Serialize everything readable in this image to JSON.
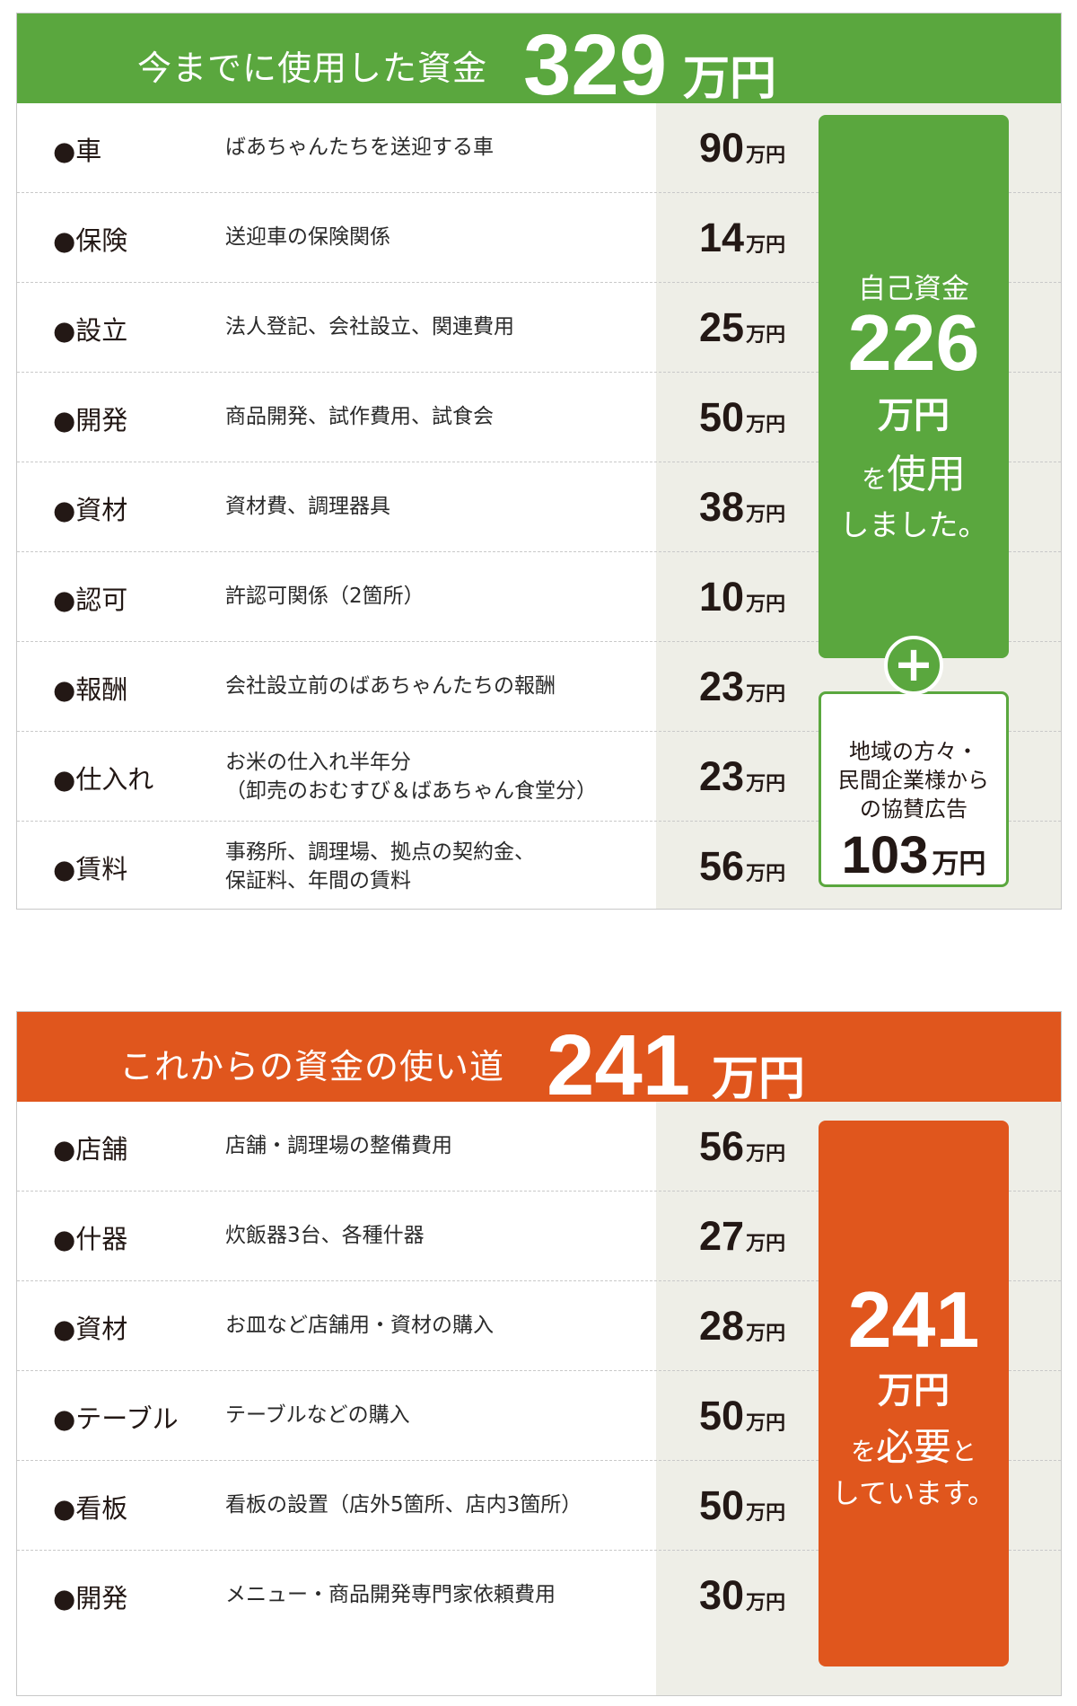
{
  "used": {
    "header_label": "今までに使用した資金",
    "header_amount": "329",
    "header_unit": "万円",
    "items": [
      {
        "category": "●車",
        "description": [
          "ばあちゃんたちを送迎する車"
        ],
        "amount": "90",
        "unit": "万円"
      },
      {
        "category": "●保険",
        "description": [
          "送迎車の保険関係"
        ],
        "amount": "14",
        "unit": "万円"
      },
      {
        "category": "●設立",
        "description": [
          "法人登記、会社設立、関連費用"
        ],
        "amount": "25",
        "unit": "万円"
      },
      {
        "category": "●開発",
        "description": [
          "商品開発、試作費用、試食会"
        ],
        "amount": "50",
        "unit": "万円"
      },
      {
        "category": "●資材",
        "description": [
          "資材費、調理器具"
        ],
        "amount": "38",
        "unit": "万円"
      },
      {
        "category": "●認可",
        "description": [
          "許認可関係（2箇所）"
        ],
        "amount": "10",
        "unit": "万円"
      },
      {
        "category": "●報酬",
        "description": [
          "会社設立前のばあちゃんたちの報酬"
        ],
        "amount": "23",
        "unit": "万円"
      },
      {
        "category": "●仕入れ",
        "description": [
          "お米の仕入れ半年分",
          "（卸売のおむすび＆ばあちゃん食堂分）"
        ],
        "amount": "23",
        "unit": "万円"
      },
      {
        "category": "●賃料",
        "description": [
          "事務所、調理場、拠点の契約金、",
          "保証料、年間の賃料"
        ],
        "amount": "56",
        "unit": "万円"
      }
    ],
    "own_funds": {
      "label": "自己資金",
      "amount": "226",
      "unit": "万円",
      "use_particle": "を",
      "use_word": "使用",
      "closing": "しました。"
    },
    "plus_symbol": "+",
    "sponsor": {
      "lines": [
        "地域の方々・",
        "民間企業様から",
        "の協賛広告"
      ],
      "amount": "103",
      "unit": "万円"
    }
  },
  "future": {
    "header_label": "これからの資金の使い道",
    "header_amount": "241",
    "header_unit": "万円",
    "items": [
      {
        "category": "●店舗",
        "description": [
          "店舗・調理場の整備費用"
        ],
        "amount": "56",
        "unit": "万円"
      },
      {
        "category": "●什器",
        "description": [
          "炊飯器3台、各種什器"
        ],
        "amount": "27",
        "unit": "万円"
      },
      {
        "category": "●資材",
        "description": [
          "お皿など店舗用・資材の購入"
        ],
        "amount": "28",
        "unit": "万円"
      },
      {
        "category": "●テーブル",
        "description": [
          "テーブルなどの購入"
        ],
        "amount": "50",
        "unit": "万円"
      },
      {
        "category": "●看板",
        "description": [
          "看板の設置（店外5箇所、店内3箇所）"
        ],
        "amount": "50",
        "unit": "万円"
      },
      {
        "category": "●開発",
        "description": [
          "メニュー・商品開発専門家依頼費用"
        ],
        "amount": "30",
        "unit": "万円"
      }
    ],
    "summary": {
      "amount": "241",
      "unit": "万円",
      "need_particle": "を",
      "need_word": "必要",
      "need_suffix": "と",
      "closing": "しています。"
    }
  },
  "colors": {
    "green": "#5aa73e",
    "orange": "#e0561d",
    "side_bg": "#eeeee7"
  }
}
